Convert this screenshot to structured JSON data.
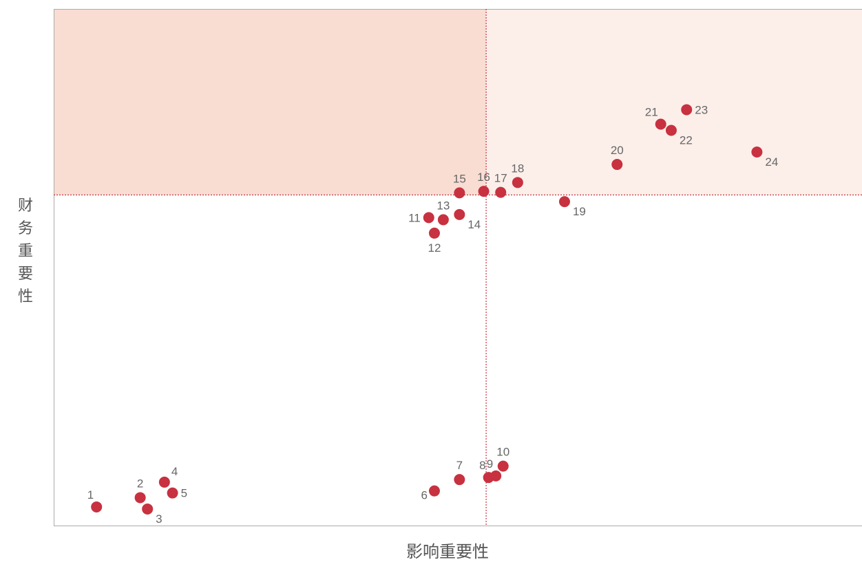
{
  "chart_data": {
    "type": "scatter",
    "title": "",
    "xlabel": "影响重要性",
    "ylabel": "财务重要性",
    "xlim": [
      0,
      100
    ],
    "ylim": [
      0,
      100
    ],
    "x_threshold": 53.5,
    "y_threshold": 64,
    "grid": false,
    "legend": "none",
    "colors": {
      "point": "#c8313f",
      "label": "#666666",
      "threshold_line": "#c8313f",
      "zone_top_left": "#f9ddd3",
      "zone_top_right": "#fcefea",
      "axis": "#aaaaaa"
    },
    "points": [
      {
        "label": "1",
        "x": 5.3,
        "y": 3.6,
        "pos": "tl"
      },
      {
        "label": "2",
        "x": 10.7,
        "y": 5.4,
        "pos": "t"
      },
      {
        "label": "3",
        "x": 11.6,
        "y": 3.2,
        "pos": "br"
      },
      {
        "label": "4",
        "x": 13.7,
        "y": 8.4,
        "pos": "tr"
      },
      {
        "label": "5",
        "x": 14.7,
        "y": 6.3,
        "pos": "r"
      },
      {
        "label": "6",
        "x": 47.1,
        "y": 6.7,
        "pos": "bl"
      },
      {
        "label": "7",
        "x": 50.2,
        "y": 8.9,
        "pos": "t"
      },
      {
        "label": "8",
        "x": 53.8,
        "y": 9.3,
        "pos": "tl"
      },
      {
        "label": "9",
        "x": 54.7,
        "y": 9.6,
        "pos": "tl"
      },
      {
        "label": "10",
        "x": 55.6,
        "y": 11.5,
        "pos": "t"
      },
      {
        "label": "11",
        "x": 46.4,
        "y": 59.6,
        "pos": "l"
      },
      {
        "label": "12",
        "x": 47.1,
        "y": 56.6,
        "pos": "b"
      },
      {
        "label": "13",
        "x": 48.2,
        "y": 59.2,
        "pos": "t"
      },
      {
        "label": "14",
        "x": 50.2,
        "y": 60.2,
        "pos": "br"
      },
      {
        "label": "15",
        "x": 50.2,
        "y": 64.4,
        "pos": "t"
      },
      {
        "label": "16",
        "x": 53.2,
        "y": 64.7,
        "pos": "t"
      },
      {
        "label": "17",
        "x": 55.3,
        "y": 64.5,
        "pos": "t"
      },
      {
        "label": "18",
        "x": 57.4,
        "y": 66.4,
        "pos": "t"
      },
      {
        "label": "19",
        "x": 63.2,
        "y": 62.7,
        "pos": "br"
      },
      {
        "label": "20",
        "x": 69.7,
        "y": 69.9,
        "pos": "t"
      },
      {
        "label": "21",
        "x": 75.1,
        "y": 77.7,
        "pos": "tl"
      },
      {
        "label": "22",
        "x": 76.4,
        "y": 76.5,
        "pos": "br"
      },
      {
        "label": "23",
        "x": 78.3,
        "y": 80.5,
        "pos": "r"
      },
      {
        "label": "24",
        "x": 87.0,
        "y": 72.3,
        "pos": "br"
      }
    ]
  }
}
